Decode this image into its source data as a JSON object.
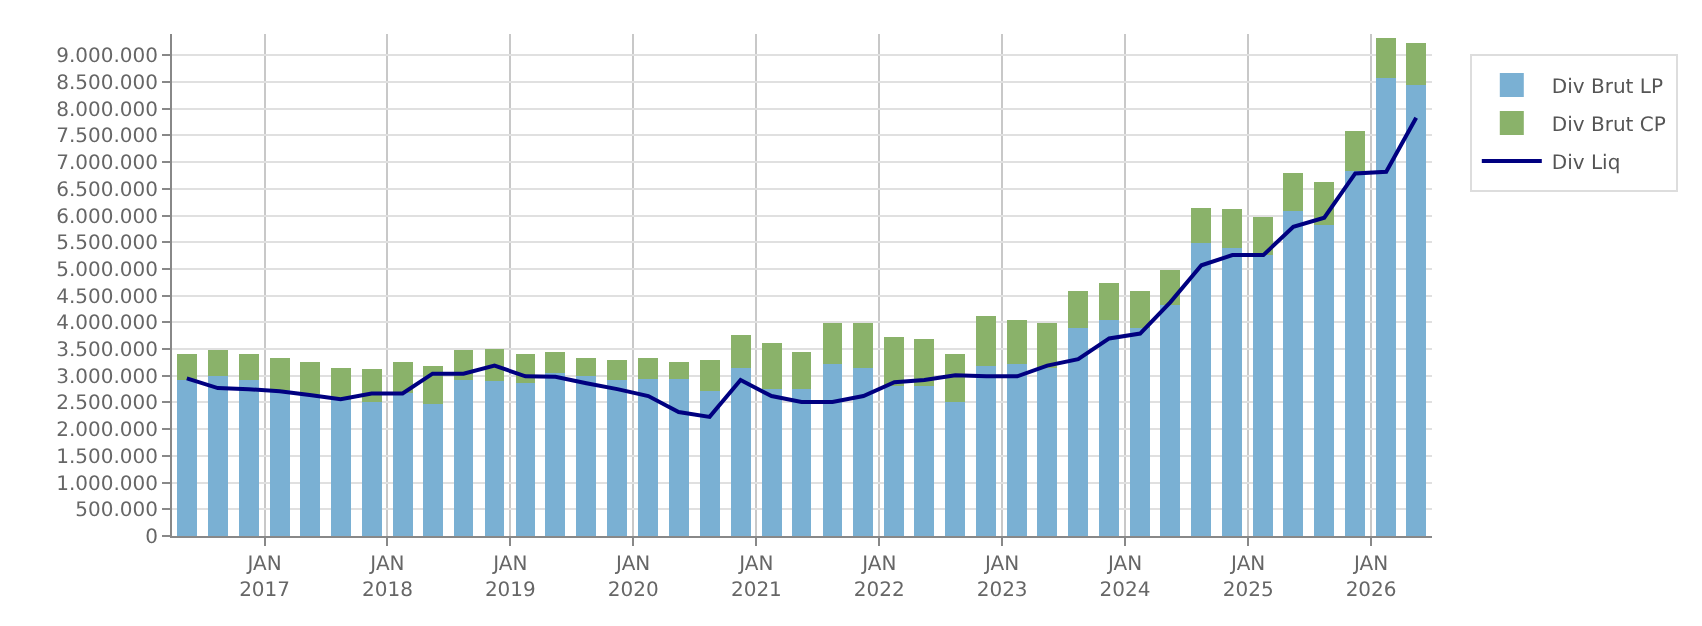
{
  "chart_data": {
    "type": "bar",
    "stacked": true,
    "x": [
      "2016-05-15",
      "2016-08-15",
      "2016-11-15",
      "2017-02-15",
      "2017-05-15",
      "2017-08-15",
      "2017-11-15",
      "2018-02-15",
      "2018-05-15",
      "2018-08-15",
      "2018-11-15",
      "2019-02-15",
      "2019-05-15",
      "2019-08-15",
      "2019-11-15",
      "2020-02-15",
      "2020-05-15",
      "2020-08-15",
      "2020-11-15",
      "2021-02-15",
      "2021-05-15",
      "2021-08-15",
      "2021-11-15",
      "2022-02-15",
      "2022-05-15",
      "2022-08-15",
      "2022-11-15",
      "2023-02-15",
      "2023-05-15",
      "2023-08-15",
      "2023-11-15",
      "2024-02-15",
      "2024-05-15",
      "2024-08-15",
      "2024-11-15",
      "2025-02-15",
      "2025-05-15",
      "2025-08-15",
      "2025-11-15",
      "2026-02-15",
      "2026-05-15"
    ],
    "series": [
      {
        "name": "Div Brut LP",
        "color": "#7ab0d3",
        "values": [
          2930000,
          2990000,
          2930000,
          2740000,
          2650000,
          2540000,
          2510000,
          2680000,
          2480000,
          2930000,
          2900000,
          2870000,
          3060000,
          2990000,
          2920000,
          2940000,
          2940000,
          2710000,
          3150000,
          2760000,
          2760000,
          3230000,
          3150000,
          2800000,
          2800000,
          2500000,
          3190000,
          3230000,
          3150000,
          3900000,
          4050000,
          3900000,
          4330000,
          5480000,
          5400000,
          5260000,
          6080000,
          5830000,
          6830000,
          8580000,
          8440000
        ]
      },
      {
        "name": "Div Brut CP",
        "color": "#8ab26a",
        "values": [
          470000,
          490000,
          470000,
          590000,
          610000,
          610000,
          610000,
          580000,
          710000,
          550000,
          610000,
          530000,
          380000,
          340000,
          380000,
          390000,
          320000,
          590000,
          610000,
          860000,
          680000,
          750000,
          830000,
          930000,
          890000,
          900000,
          930000,
          820000,
          830000,
          680000,
          680000,
          680000,
          650000,
          670000,
          720000,
          720000,
          720000,
          790000,
          750000,
          750000,
          790000
        ]
      },
      {
        "name": "Div Liq",
        "type": "line",
        "color": "#000080",
        "line_style": "solid",
        "marker": "none",
        "values": [
          2950000,
          2770000,
          2750000,
          2710000,
          2640000,
          2560000,
          2670000,
          2670000,
          3040000,
          3040000,
          3190000,
          2990000,
          2980000,
          2860000,
          2750000,
          2620000,
          2320000,
          2230000,
          2920000,
          2620000,
          2510000,
          2510000,
          2620000,
          2880000,
          2920000,
          3010000,
          2990000,
          2990000,
          3190000,
          3310000,
          3700000,
          3790000,
          4380000,
          5070000,
          5260000,
          5260000,
          5790000,
          5960000,
          6790000,
          6820000,
          7830000
        ]
      }
    ],
    "xlim": [
      "2016-04-01",
      "2026-07-01"
    ],
    "xticks": [
      {
        "value": "2017-01-01",
        "label": "JAN\n2017"
      },
      {
        "value": "2018-01-01",
        "label": "JAN\n2018"
      },
      {
        "value": "2019-01-01",
        "label": "JAN\n2019"
      },
      {
        "value": "2020-01-01",
        "label": "JAN\n2020"
      },
      {
        "value": "2021-01-01",
        "label": "JAN\n2021"
      },
      {
        "value": "2022-01-01",
        "label": "JAN\n2022"
      },
      {
        "value": "2023-01-01",
        "label": "JAN\n2023"
      },
      {
        "value": "2024-01-01",
        "label": "JAN\n2024"
      },
      {
        "value": "2025-01-01",
        "label": "JAN\n2025"
      },
      {
        "value": "2026-01-01",
        "label": "JAN\n2026"
      }
    ],
    "ylim": [
      0,
      9400000
    ],
    "yticks": [
      {
        "value": 0,
        "label": "0"
      },
      {
        "value": 500000,
        "label": "500.000"
      },
      {
        "value": 1000000,
        "label": "1.000.000"
      },
      {
        "value": 1500000,
        "label": "1.500.000"
      },
      {
        "value": 2000000,
        "label": "2.000.000"
      },
      {
        "value": 2500000,
        "label": "2.500.000"
      },
      {
        "value": 3000000,
        "label": "3.000.000"
      },
      {
        "value": 3500000,
        "label": "3.500.000"
      },
      {
        "value": 4000000,
        "label": "4.000.000"
      },
      {
        "value": 4500000,
        "label": "4.500.000"
      },
      {
        "value": 5000000,
        "label": "5.000.000"
      },
      {
        "value": 5500000,
        "label": "5.500.000"
      },
      {
        "value": 6000000,
        "label": "6.000.000"
      },
      {
        "value": 6500000,
        "label": "6.500.000"
      },
      {
        "value": 7000000,
        "label": "7.000.000"
      },
      {
        "value": 7500000,
        "label": "7.500.000"
      },
      {
        "value": 8000000,
        "label": "8.000.000"
      },
      {
        "value": 8500000,
        "label": "8.500.000"
      },
      {
        "value": 9000000,
        "label": "9.000.000"
      }
    ],
    "grid": true,
    "legend": "top right"
  }
}
